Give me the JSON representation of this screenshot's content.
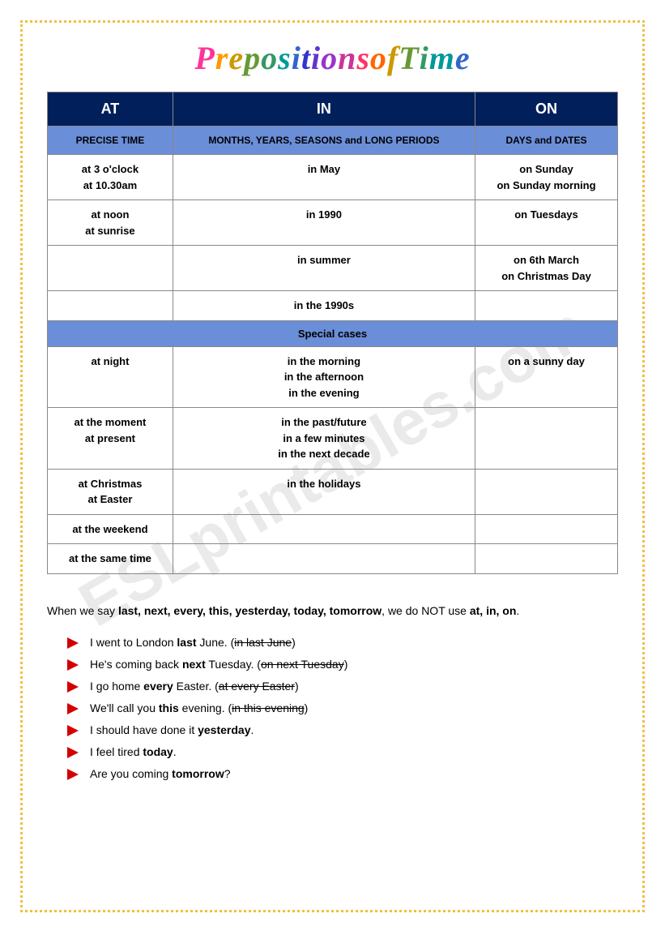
{
  "title_text": "Prepositions of Time",
  "watermark": "ESLprintables.com",
  "headers": {
    "at": "AT",
    "in": "IN",
    "on": "ON"
  },
  "subheaders": {
    "at": "PRECISE TIME",
    "in": "MONTHS, YEARS, SEASONS and LONG PERIODS",
    "on": "DAYS and DATES"
  },
  "rows": [
    {
      "at": "at 3 o'clock\nat 10.30am",
      "in": "in May",
      "on": "on Sunday\non Sunday morning"
    },
    {
      "at": "at noon\nat sunrise",
      "in": "in 1990",
      "on": "on Tuesdays"
    },
    {
      "at": "",
      "in": "in summer",
      "on": "on 6th March\non Christmas Day"
    },
    {
      "at": "",
      "in": "in the 1990s",
      "on": ""
    }
  ],
  "special_label": "Special cases",
  "special_rows": [
    {
      "at": "at night",
      "in": "in the morning\nin the afternoon\nin the evening",
      "on": "on a sunny day"
    },
    {
      "at": "at the moment\nat present",
      "in": "in the past/future\nin a few minutes\nin the next decade",
      "on": ""
    },
    {
      "at": "at Christmas\nat Easter",
      "in": "in the holidays",
      "on": ""
    },
    {
      "at": "at the weekend",
      "in": "",
      "on": ""
    },
    {
      "at": "at the same time",
      "in": "",
      "on": ""
    }
  ],
  "note": {
    "pre": "When we say ",
    "bold_words": "last, next, every, this, yesterday, today, tomorrow",
    "mid": ", we do NOT use ",
    "bold_prep": "at, in, on",
    "end": "."
  },
  "examples": [
    {
      "pre": "I went to London ",
      "b": "last",
      "post": " June. (",
      "strike": "in last June",
      "tail": ")"
    },
    {
      "pre": "He's coming back ",
      "b": "next",
      "post": " Tuesday. (",
      "strike": "on next Tuesday",
      "tail": ")"
    },
    {
      "pre": "I go home ",
      "b": "every",
      "post": " Easter. (",
      "strike": "at every Easter",
      "tail": ")"
    },
    {
      "pre": "We'll call you ",
      "b": "this",
      "post": " evening. (",
      "strike": "in this evening",
      "tail": ")"
    },
    {
      "pre": "I should have done it ",
      "b": "yesterday",
      "post": ".",
      "strike": "",
      "tail": ""
    },
    {
      "pre": "I feel tired ",
      "b": "today",
      "post": ".",
      "strike": "",
      "tail": ""
    },
    {
      "pre": "Are you coming ",
      "b": "tomorrow",
      "post": "?",
      "strike": "",
      "tail": ""
    }
  ],
  "col_widths": {
    "at": "22%",
    "in": "53%",
    "on": "25%"
  }
}
